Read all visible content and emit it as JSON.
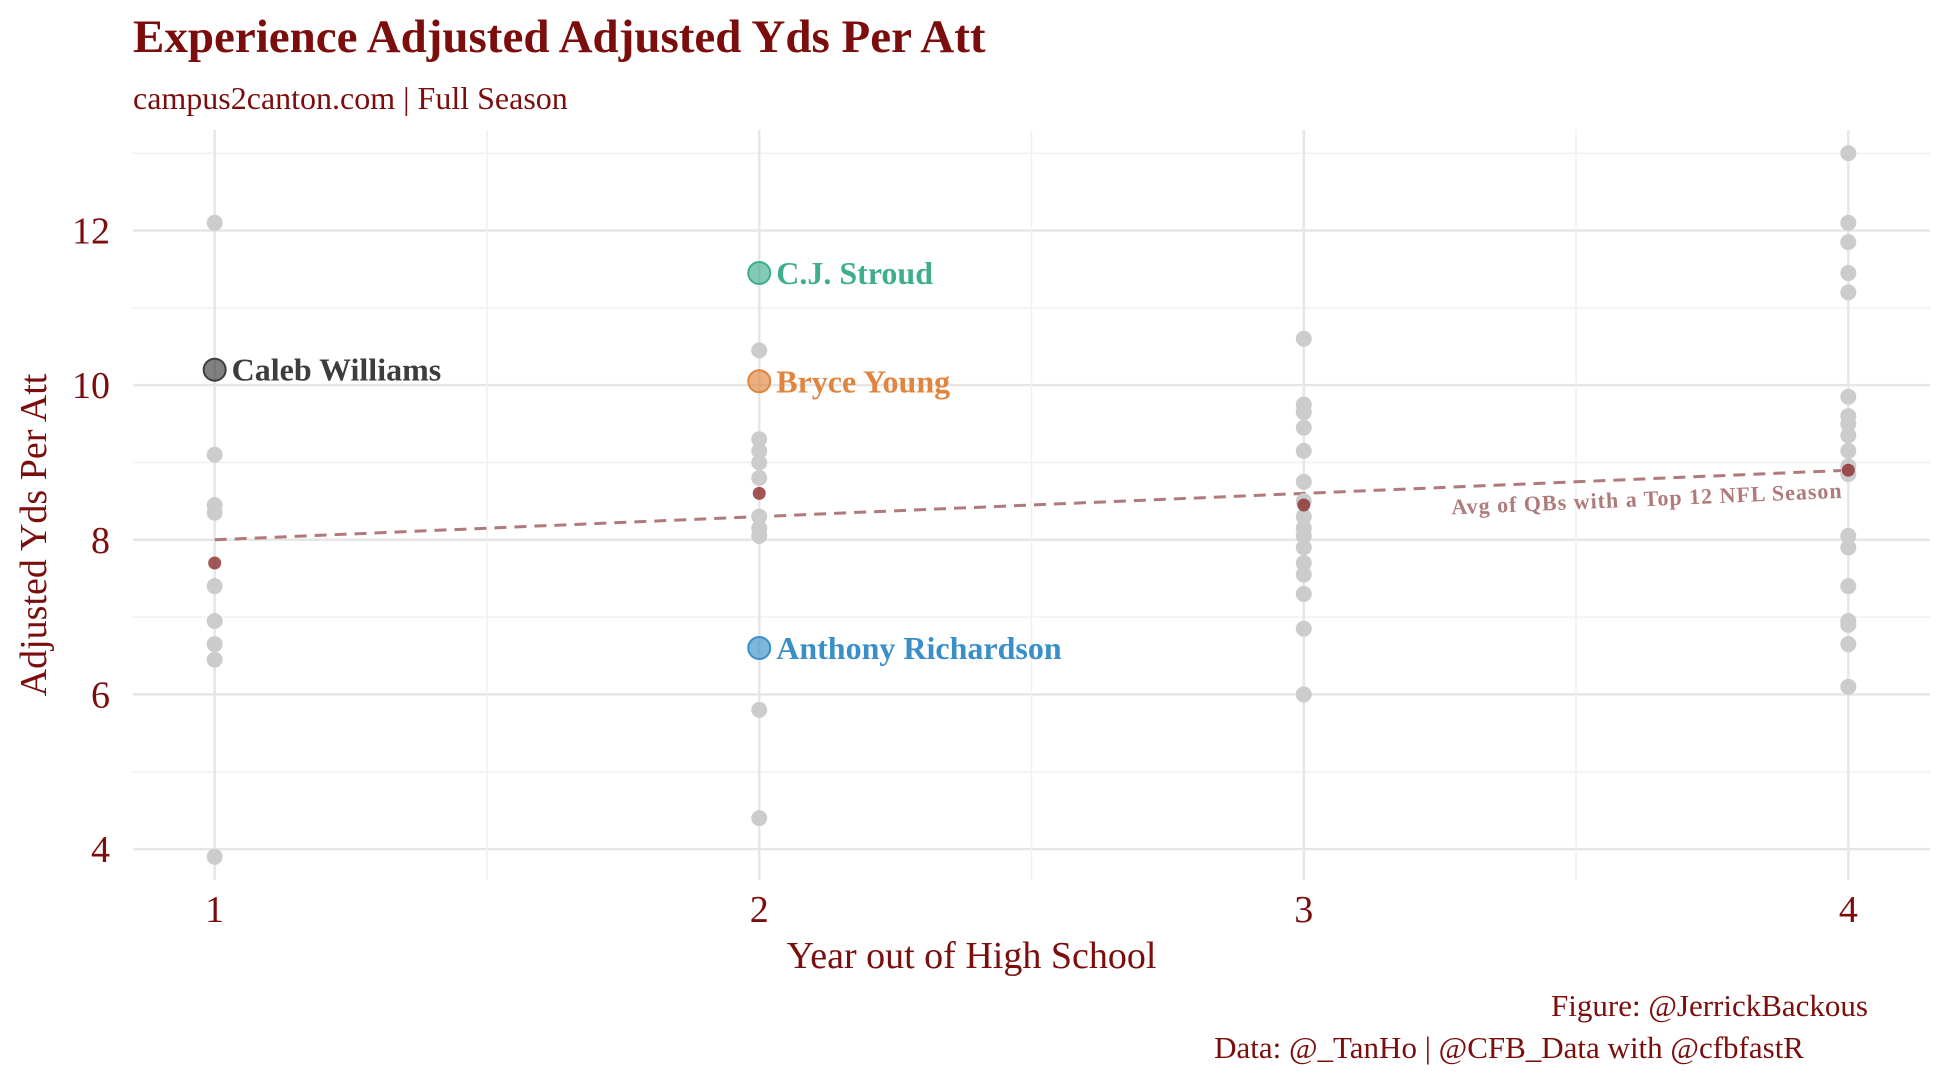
{
  "header": {
    "title": "Experience Adjusted Adjusted Yds Per Att",
    "subtitle": "campus2canton.com | Full Season"
  },
  "footer": {
    "figure_credit": "Figure: @JerrickBackous",
    "data_credit": "Data: @_TanHo | @CFB_Data with @cfbfastR"
  },
  "chart_data": {
    "type": "scatter",
    "title": "Experience Adjusted Adjusted Yds Per Att",
    "subtitle": "campus2canton.com | Full Season",
    "xlabel": "Year out of High School",
    "ylabel": "Adjusted Yds Per Att",
    "xlim": [
      0.85,
      4.15
    ],
    "ylim": [
      3.6,
      13.3
    ],
    "x_ticks": [
      1,
      2,
      3,
      4
    ],
    "y_ticks": [
      4,
      6,
      8,
      10,
      12
    ],
    "grid": true,
    "colors": {
      "background_points": "#cccccc",
      "average_points": "#8b2c2c",
      "trend_line": "#b07a7a",
      "text": "#7b0d0d"
    },
    "series": [
      {
        "role": "background",
        "points": [
          {
            "x": 1,
            "y": 12.1
          },
          {
            "x": 1,
            "y": 9.1
          },
          {
            "x": 1,
            "y": 8.45
          },
          {
            "x": 1,
            "y": 8.35
          },
          {
            "x": 1,
            "y": 7.4
          },
          {
            "x": 1,
            "y": 6.95
          },
          {
            "x": 1,
            "y": 6.65
          },
          {
            "x": 1,
            "y": 6.45
          },
          {
            "x": 1,
            "y": 3.9
          },
          {
            "x": 2,
            "y": 10.45
          },
          {
            "x": 2,
            "y": 9.3
          },
          {
            "x": 2,
            "y": 9.15
          },
          {
            "x": 2,
            "y": 9.0
          },
          {
            "x": 2,
            "y": 8.8
          },
          {
            "x": 2,
            "y": 8.3
          },
          {
            "x": 2,
            "y": 8.15
          },
          {
            "x": 2,
            "y": 8.05
          },
          {
            "x": 2,
            "y": 5.8
          },
          {
            "x": 2,
            "y": 4.4
          },
          {
            "x": 3,
            "y": 10.6
          },
          {
            "x": 3,
            "y": 9.75
          },
          {
            "x": 3,
            "y": 9.65
          },
          {
            "x": 3,
            "y": 9.45
          },
          {
            "x": 3,
            "y": 9.15
          },
          {
            "x": 3,
            "y": 8.75
          },
          {
            "x": 3,
            "y": 8.5
          },
          {
            "x": 3,
            "y": 8.3
          },
          {
            "x": 3,
            "y": 8.15
          },
          {
            "x": 3,
            "y": 8.05
          },
          {
            "x": 3,
            "y": 7.9
          },
          {
            "x": 3,
            "y": 7.7
          },
          {
            "x": 3,
            "y": 7.55
          },
          {
            "x": 3,
            "y": 7.3
          },
          {
            "x": 3,
            "y": 6.85
          },
          {
            "x": 3,
            "y": 6.0
          },
          {
            "x": 4,
            "y": 13.0
          },
          {
            "x": 4,
            "y": 12.1
          },
          {
            "x": 4,
            "y": 11.85
          },
          {
            "x": 4,
            "y": 11.45
          },
          {
            "x": 4,
            "y": 11.2
          },
          {
            "x": 4,
            "y": 9.85
          },
          {
            "x": 4,
            "y": 9.6
          },
          {
            "x": 4,
            "y": 9.5
          },
          {
            "x": 4,
            "y": 9.35
          },
          {
            "x": 4,
            "y": 9.15
          },
          {
            "x": 4,
            "y": 8.95
          },
          {
            "x": 4,
            "y": 8.85
          },
          {
            "x": 4,
            "y": 8.05
          },
          {
            "x": 4,
            "y": 7.9
          },
          {
            "x": 4,
            "y": 7.4
          },
          {
            "x": 4,
            "y": 6.95
          },
          {
            "x": 4,
            "y": 6.9
          },
          {
            "x": 4,
            "y": 6.65
          },
          {
            "x": 4,
            "y": 6.1
          }
        ]
      },
      {
        "role": "average",
        "points": [
          {
            "x": 1,
            "y": 7.7
          },
          {
            "x": 2,
            "y": 8.6
          },
          {
            "x": 3,
            "y": 8.45
          },
          {
            "x": 4,
            "y": 8.9
          }
        ]
      }
    ],
    "highlighted": [
      {
        "name": "Caleb Williams",
        "x": 1,
        "y": 10.2,
        "color": "#3d3d3d"
      },
      {
        "name": "C.J. Stroud",
        "x": 2,
        "y": 11.45,
        "color": "#3fae8e"
      },
      {
        "name": "Bryce Young",
        "x": 2,
        "y": 10.05,
        "color": "#e0853f"
      },
      {
        "name": "Anthony Richardson",
        "x": 2,
        "y": 6.6,
        "color": "#3a8fc9"
      }
    ],
    "trend_line": {
      "label": "Avg of QBs with a Top 12 NFL Season",
      "start": {
        "x": 1,
        "y": 8.0
      },
      "end": {
        "x": 4,
        "y": 8.9
      }
    }
  }
}
